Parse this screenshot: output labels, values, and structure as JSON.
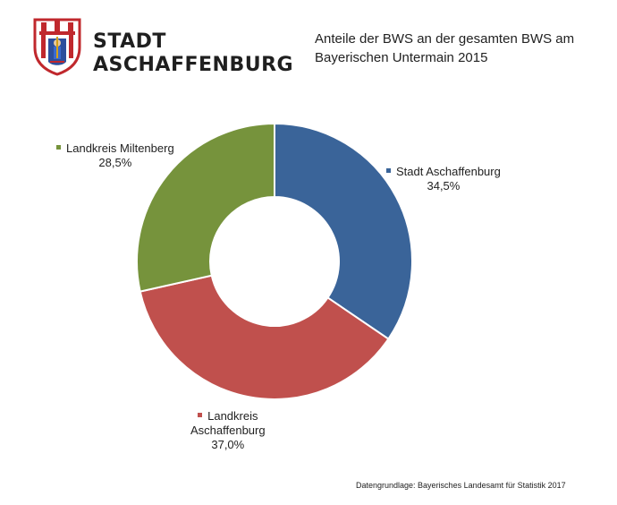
{
  "brand": {
    "line1": "STADT",
    "line2": "ASCHAFFENBURG"
  },
  "title": {
    "line1": "Anteile der BWS an der gesamten BWS am",
    "line2": "Bayerischen Untermain 2015"
  },
  "chart_data": {
    "type": "pie",
    "variant": "donut",
    "title": "Anteile der BWS an der gesamten BWS am Bayerischen Untermain 2015",
    "slices": [
      {
        "name": "Stadt Aschaffenburg",
        "name_lines": [
          "Stadt Aschaffenburg"
        ],
        "value": 34.5,
        "label": "34,5%",
        "color": "#3a6499"
      },
      {
        "name": "Landkreis Aschaffenburg",
        "name_lines": [
          "Landkreis",
          "Aschaffenburg"
        ],
        "value": 37.0,
        "label": "37,0%",
        "color": "#c0504d"
      },
      {
        "name": "Landkreis Miltenberg",
        "name_lines": [
          "Landkreis Miltenberg"
        ],
        "value": 28.5,
        "label": "28,5%",
        "color": "#76933c"
      }
    ]
  },
  "footnote": "Datengrundlage: Bayerisches Landesamt für Statistik 2017"
}
